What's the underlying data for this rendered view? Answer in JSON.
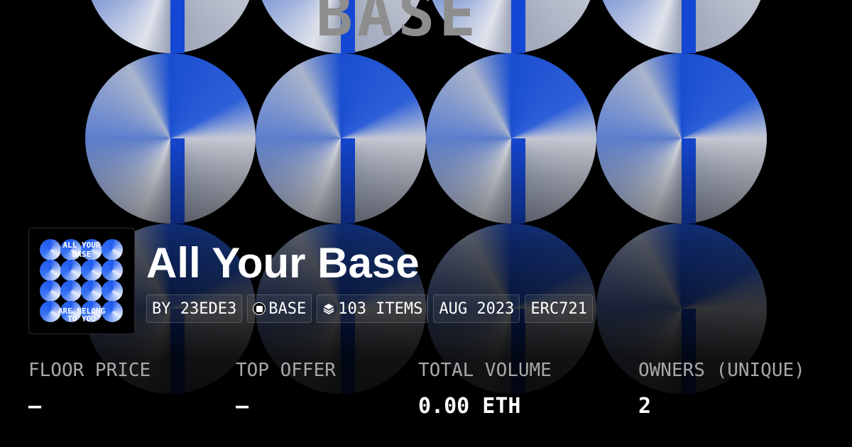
{
  "background": {
    "banner_text": "BASE"
  },
  "collection": {
    "thumbnail_text": [
      "ALL YOUR",
      "BASE",
      "ARE BELONG",
      "TO YOU"
    ],
    "title": "All Your Base",
    "tags": {
      "creator": "BY 23EDE3",
      "chain": "BASE",
      "chain_icon": "base-chain-icon",
      "items": "103 ITEMS",
      "items_icon": "layers-icon",
      "date": "AUG 2023",
      "standard": "ERC721"
    }
  },
  "stats": [
    {
      "label": "FLOOR PRICE",
      "value": "–"
    },
    {
      "label": "TOP OFFER",
      "value": "–"
    },
    {
      "label": "TOTAL VOLUME",
      "value": "0.00 ETH"
    },
    {
      "label": "OWNERS (UNIQUE)",
      "value": "2"
    }
  ],
  "colors": {
    "accent_blue": "#1447d4",
    "background": "#000000",
    "muted_text": "#a8a8a8"
  }
}
